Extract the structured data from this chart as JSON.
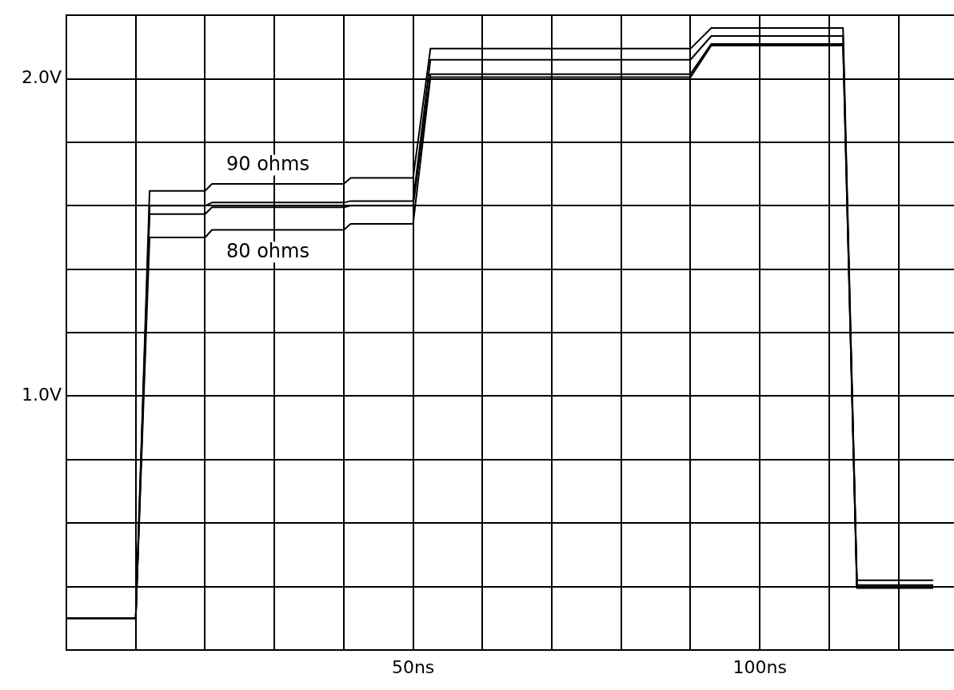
{
  "chart_data": {
    "type": "line",
    "x": [
      0,
      10,
      12,
      20,
      21,
      40,
      41,
      50,
      52.5,
      90,
      93,
      112,
      114,
      125
    ],
    "series": [
      {
        "color": "#000000",
        "values": [
          0.3,
          0.3,
          1.647,
          1.647,
          1.669,
          1.669,
          1.688,
          1.688,
          2.095,
          2.095,
          2.16,
          2.16,
          0.42,
          0.42
        ]
      },
      {
        "color": "#000000",
        "values": [
          0.3,
          0.3,
          1.6,
          1.6,
          1.61,
          1.61,
          1.615,
          1.615,
          2.06,
          2.06,
          2.135,
          2.135,
          0.405,
          0.405
        ]
      },
      {
        "color": "#000000",
        "values": [
          0.3,
          0.3,
          1.574,
          1.574,
          1.595,
          1.595,
          1.6,
          1.6,
          2.015,
          2.015,
          2.11,
          2.11,
          0.4,
          0.4
        ]
      },
      {
        "color": "#000000",
        "values": [
          0.3,
          0.3,
          1.5,
          1.5,
          1.524,
          1.524,
          1.543,
          1.543,
          2.005,
          2.005,
          2.105,
          2.105,
          0.395,
          0.395
        ]
      }
    ],
    "xlim": [
      0,
      128
    ],
    "xticks": [
      {
        "value": 10,
        "label": null
      },
      {
        "value": 20,
        "label": null
      },
      {
        "value": 30,
        "label": null
      },
      {
        "value": 40,
        "label": null
      },
      {
        "value": 50,
        "label": "50ns"
      },
      {
        "value": 60,
        "label": null
      },
      {
        "value": 70,
        "label": null
      },
      {
        "value": 80,
        "label": null
      },
      {
        "value": 90,
        "label": null
      },
      {
        "value": 100,
        "label": "100ns"
      },
      {
        "value": 110,
        "label": null
      },
      {
        "value": 120,
        "label": null
      }
    ],
    "ylim": [
      0.2,
      2.2
    ],
    "yticks": [
      {
        "value": 0.4,
        "label": null
      },
      {
        "value": 0.6,
        "label": null
      },
      {
        "value": 0.8,
        "label": null
      },
      {
        "value": 1.0,
        "label": "1.0V"
      },
      {
        "value": 1.2,
        "label": null
      },
      {
        "value": 1.4,
        "label": null
      },
      {
        "value": 1.6,
        "label": null
      },
      {
        "value": 1.8,
        "label": null
      },
      {
        "value": 2.0,
        "label": "2.0V"
      },
      {
        "value": 2.2,
        "label": null
      }
    ],
    "grid": true,
    "legend": false,
    "marker": "none",
    "line_style": "solid",
    "annotations": [
      "90 ohms",
      "80 ohms"
    ]
  }
}
